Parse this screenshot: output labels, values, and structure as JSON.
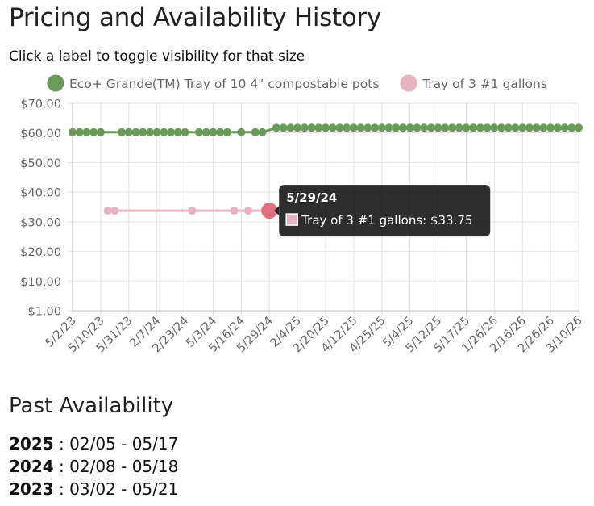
{
  "page": {
    "title": "Pricing and Availability History",
    "subtitle": "Click a label to toggle visibility for that size"
  },
  "chart_data": {
    "type": "line",
    "categories": [
      "5/2/23",
      "5/10/23",
      "5/31/23",
      "2/7/24",
      "2/23/24",
      "5/3/24",
      "5/16/24",
      "5/29/24",
      "2/4/25",
      "2/20/25",
      "4/12/25",
      "4/25/25",
      "5/4/25",
      "5/12/25",
      "5/17/25",
      "1/26/26",
      "2/16/26",
      "2/26/26",
      "3/10/26"
    ],
    "ylabels": [
      "$70.00",
      "$60.00",
      "$50.00",
      "$40.00",
      "$30.00",
      "$20.00",
      "$10.00",
      "$1.00"
    ],
    "ylim": [
      1,
      70
    ],
    "grid": true,
    "legend_position": "top",
    "series": [
      {
        "name": "Eco+ Grande(TM) Tray of 10 4\" compostable pots",
        "color": "#6a9a58",
        "points": [
          {
            "i": 0,
            "y": 60.25
          },
          {
            "i": 0.25,
            "y": 60.25
          },
          {
            "i": 0.5,
            "y": 60.25
          },
          {
            "i": 0.75,
            "y": 60.25
          },
          {
            "i": 1,
            "y": 60.25
          },
          {
            "i": 1.75,
            "y": 60.25
          },
          {
            "i": 2,
            "y": 60.25
          },
          {
            "i": 2.25,
            "y": 60.25
          },
          {
            "i": 2.5,
            "y": 60.25
          },
          {
            "i": 2.75,
            "y": 60.25
          },
          {
            "i": 3,
            "y": 60.25
          },
          {
            "i": 3.25,
            "y": 60.25
          },
          {
            "i": 3.5,
            "y": 60.25
          },
          {
            "i": 3.75,
            "y": 60.25
          },
          {
            "i": 4,
            "y": 60.25
          },
          {
            "i": 4.5,
            "y": 60.25
          },
          {
            "i": 4.75,
            "y": 60.25
          },
          {
            "i": 5,
            "y": 60.25
          },
          {
            "i": 5.25,
            "y": 60.25
          },
          {
            "i": 5.5,
            "y": 60.25
          },
          {
            "i": 6,
            "y": 60.25
          },
          {
            "i": 6.5,
            "y": 60.25
          },
          {
            "i": 6.75,
            "y": 60.25
          },
          {
            "i": 7.25,
            "y": 61.75
          },
          {
            "i": 7.5,
            "y": 61.75
          },
          {
            "i": 7.75,
            "y": 61.75
          },
          {
            "i": 8,
            "y": 61.75
          },
          {
            "i": 8.25,
            "y": 61.75
          },
          {
            "i": 8.5,
            "y": 61.75
          },
          {
            "i": 8.75,
            "y": 61.75
          },
          {
            "i": 9,
            "y": 61.75
          },
          {
            "i": 9.25,
            "y": 61.75
          },
          {
            "i": 9.5,
            "y": 61.75
          },
          {
            "i": 9.75,
            "y": 61.75
          },
          {
            "i": 10,
            "y": 61.75
          },
          {
            "i": 10.25,
            "y": 61.75
          },
          {
            "i": 10.5,
            "y": 61.75
          },
          {
            "i": 10.75,
            "y": 61.75
          },
          {
            "i": 11,
            "y": 61.75
          },
          {
            "i": 11.25,
            "y": 61.75
          },
          {
            "i": 11.5,
            "y": 61.75
          },
          {
            "i": 11.75,
            "y": 61.75
          },
          {
            "i": 12,
            "y": 61.75
          },
          {
            "i": 12.25,
            "y": 61.75
          },
          {
            "i": 12.5,
            "y": 61.75
          },
          {
            "i": 12.75,
            "y": 61.75
          },
          {
            "i": 13,
            "y": 61.75
          },
          {
            "i": 13.25,
            "y": 61.75
          },
          {
            "i": 13.5,
            "y": 61.75
          },
          {
            "i": 13.75,
            "y": 61.75
          },
          {
            "i": 14,
            "y": 61.75
          },
          {
            "i": 14.25,
            "y": 61.75
          },
          {
            "i": 14.5,
            "y": 61.75
          },
          {
            "i": 14.75,
            "y": 61.75
          },
          {
            "i": 15,
            "y": 61.75
          },
          {
            "i": 15.25,
            "y": 61.75
          },
          {
            "i": 15.5,
            "y": 61.75
          },
          {
            "i": 15.75,
            "y": 61.75
          },
          {
            "i": 16,
            "y": 61.75
          },
          {
            "i": 16.25,
            "y": 61.75
          },
          {
            "i": 16.5,
            "y": 61.75
          },
          {
            "i": 16.75,
            "y": 61.75
          },
          {
            "i": 17,
            "y": 61.75
          },
          {
            "i": 17.25,
            "y": 61.75
          },
          {
            "i": 17.5,
            "y": 61.75
          },
          {
            "i": 17.75,
            "y": 61.75
          },
          {
            "i": 18,
            "y": 61.75
          }
        ]
      },
      {
        "name": "Tray of 3 #1 gallons",
        "color": "#e6b3bf",
        "points": [
          {
            "i": 1.25,
            "y": 33.75
          },
          {
            "i": 1.5,
            "y": 33.75
          },
          {
            "i": 4.25,
            "y": 33.75
          },
          {
            "i": 5.75,
            "y": 33.75
          },
          {
            "i": 6.25,
            "y": 33.75
          },
          {
            "i": 7,
            "y": 33.75
          }
        ]
      }
    ],
    "tooltip": {
      "title": "5/29/24",
      "label": "Tray of 3 #1 gallons: $33.75",
      "series_index": 1,
      "point_index": 5
    }
  },
  "past_availability": {
    "title": "Past Availability",
    "entries": [
      {
        "year": "2025",
        "range": " : 02/05 - 05/17"
      },
      {
        "year": "2024",
        "range": " : 02/08 - 05/18"
      },
      {
        "year": "2023",
        "range": " : 03/02 - 05/21"
      }
    ]
  }
}
